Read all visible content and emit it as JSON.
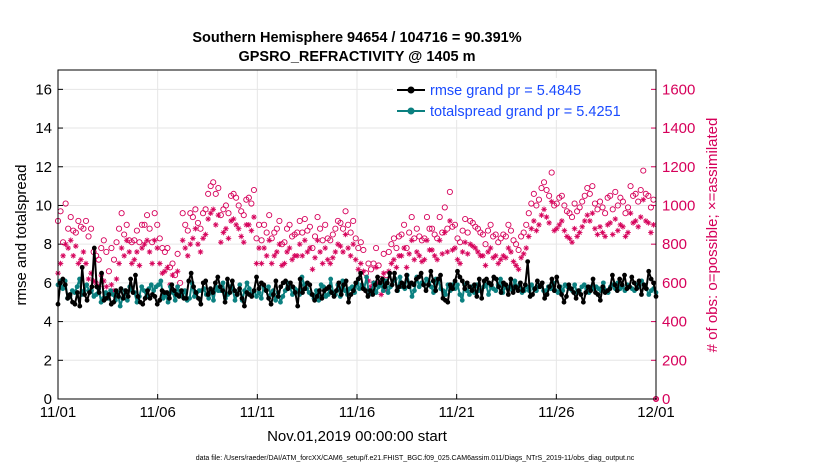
{
  "chart_data": {
    "type": "line",
    "title": "Southern Hemisphere 94654 / 104716 = 90.391%",
    "subtitle": "GPSRO_REFRACTIVITY @ 1405 m",
    "xlabel": "Nov.01,2019 00:00:00 start",
    "ylabel": "rmse and totalspread",
    "y2label": "# of obs: o=possible; ×=assimilated",
    "xticks": [
      "11/01",
      "11/06",
      "11/11",
      "11/16",
      "11/21",
      "11/26",
      "12/01"
    ],
    "yticks": [
      "0",
      "2",
      "4",
      "6",
      "8",
      "10",
      "12",
      "14",
      "16"
    ],
    "y2ticks": [
      "0",
      "200",
      "400",
      "600",
      "800",
      "1000",
      "1200",
      "1400",
      "1600"
    ],
    "xlim": [
      0,
      30
    ],
    "ylim": [
      0,
      17
    ],
    "y2lim": [
      0,
      1700
    ],
    "grid": true,
    "legend_position": "top-right",
    "footnote": "data file: /Users/raeder/DAI/ATM_forcXX/CAM6_setup/f.e21.FHIST_BGC.f09_025.CAM6assim.011/Diags_NTrS_2019-11/obs_diag_output.nc",
    "colors": {
      "rmse": "#000000",
      "spread": "#0b8080",
      "obs": "#d6005a",
      "legend_text": "#1a4bff"
    },
    "series": [
      {
        "name": "rmse grand pr = 5.4845",
        "values": [
          4.9,
          6.0,
          6.2,
          5.9,
          5.2,
          5.4,
          5.0,
          4.9,
          5.5,
          4.8,
          6.8,
          5.4,
          5.1,
          5.5,
          5.8,
          7.8,
          5.8,
          5.5,
          6.5,
          5.1,
          5.2,
          5.4,
          4.9,
          5.0,
          5.6,
          5.3,
          5.7,
          5.2,
          5.6,
          5.3,
          6.2,
          5.5,
          6.4,
          5.3,
          5.0,
          4.9,
          5.2,
          5.6,
          5.2,
          5.4,
          5.3,
          4.9,
          5.1,
          5.6,
          5.5,
          5.5,
          5.2,
          5.9,
          5.6,
          5.4,
          5.3,
          5.6,
          5.2,
          5.2,
          6.1,
          6.5,
          5.8,
          5.5,
          5.2,
          4.9,
          6.0,
          6.1,
          5.4,
          5.7,
          5.5,
          6.0,
          6.3,
          5.8,
          5.6,
          5.0,
          6.2,
          5.5,
          6.1,
          5.6,
          5.4,
          5.7,
          5.2,
          4.8,
          5.5,
          5.4,
          5.3,
          5.6,
          6.3,
          5.7,
          6.0,
          5.9,
          5.6,
          5.2,
          4.9,
          5.4,
          6.1,
          5.3,
          5.8,
          6.0,
          6.1,
          5.7,
          6.0,
          5.8,
          5.5,
          4.8,
          6.2,
          5.5,
          5.7,
          6.0,
          5.9,
          5.4,
          5.1,
          5.3,
          5.6,
          5.2,
          5.6,
          5.7,
          5.8,
          5.5,
          5.3,
          5.6,
          6.0,
          5.4,
          5.9,
          6.1,
          5.0,
          5.4,
          5.6,
          6.0,
          6.2,
          6.5,
          5.7,
          5.6,
          5.3,
          5.6,
          5.4,
          5.9,
          6.3,
          6.0,
          6.2,
          5.8,
          6.0,
          6.5,
          5.9,
          6.5,
          5.6,
          5.8,
          6.0,
          5.8,
          6.4,
          5.8,
          6.0,
          5.9,
          6.2,
          6.3,
          6.5,
          5.9,
          5.6,
          5.9,
          6.6,
          6.1,
          5.6,
          6.2,
          6.4,
          5.2,
          5.1,
          5.0,
          5.9,
          5.7,
          6.1,
          6.6,
          6.3,
          6.1,
          5.7,
          6.0,
          5.8,
          5.6,
          5.9,
          5.3,
          6.2,
          5.2,
          6.1,
          6.2,
          6.0,
          5.9,
          6.3,
          6.2,
          5.8,
          5.5,
          6.0,
          5.9,
          5.4,
          6.2,
          5.5,
          5.8,
          5.6,
          6.0,
          5.6,
          5.9,
          7.1,
          5.3,
          5.4,
          5.7,
          6.1,
          5.8,
          6.0,
          5.2,
          5.4,
          5.8,
          6.2,
          5.6,
          6.3,
          5.8,
          5.4,
          5.0,
          5.3,
          5.9,
          5.7,
          5.5,
          5.2,
          5.6,
          5.4,
          5.0,
          5.5,
          5.8,
          5.6,
          6.2,
          5.5,
          5.4,
          5.1,
          5.8,
          5.5,
          5.6,
          5.7,
          6.4,
          5.9,
          5.6,
          6.2,
          5.9,
          6.4,
          5.7,
          5.8,
          6.3,
          6.0,
          5.7,
          6.1,
          5.4,
          5.9,
          5.7,
          6.6,
          6.2,
          6.0,
          5.3
        ]
      },
      {
        "name": "totalspread grand pr = 5.4251",
        "values": [
          5.9,
          6.1,
          5.7,
          6.1,
          5.2,
          5.3,
          5.6,
          5.5,
          5.8,
          6.2,
          5.4,
          5.6,
          5.9,
          5.6,
          5.6,
          5.3,
          5.4,
          5.7,
          5.0,
          5.2,
          5.5,
          5.2,
          5.6,
          5.4,
          5.1,
          5.5,
          4.8,
          5.2,
          5.6,
          5.1,
          5.8,
          5.6,
          5.5,
          5.0,
          5.3,
          5.8,
          5.6,
          5.3,
          5.7,
          5.9,
          5.6,
          5.8,
          5.9,
          6.1,
          5.2,
          5.4,
          5.0,
          5.8,
          5.5,
          5.1,
          5.8,
          5.4,
          5.3,
          5.6,
          5.1,
          5.2,
          6.0,
          5.3,
          5.5,
          5.6,
          5.6,
          5.7,
          5.4,
          5.2,
          5.6,
          5.1,
          5.8,
          5.6,
          5.6,
          6.0,
          5.2,
          5.4,
          5.8,
          5.7,
          5.1,
          5.4,
          5.9,
          5.1,
          5.6,
          6.0,
          5.7,
          5.4,
          5.6,
          5.3,
          5.5,
          5.2,
          5.8,
          5.6,
          5.8,
          5.4,
          5.6,
          5.1,
          5.5,
          5.0,
          5.3,
          5.6,
          6.0,
          5.8,
          5.4,
          5.7,
          5.6,
          5.4,
          6.3,
          5.9,
          5.7,
          5.5,
          5.4,
          5.2,
          5.6,
          5.1,
          5.9,
          5.8,
          5.3,
          5.4,
          6.2,
          5.5,
          5.4,
          5.9,
          5.3,
          6.1,
          5.6,
          5.4,
          5.7,
          5.8,
          5.5,
          6.0,
          5.7,
          5.9,
          5.7,
          6.3,
          5.4,
          5.6,
          6.0,
          5.5,
          5.8,
          5.9,
          5.6,
          6.1,
          5.5,
          5.8,
          6.1,
          6.2,
          5.6,
          6.3,
          5.8,
          5.7,
          6.4,
          5.9,
          5.3,
          5.6,
          6.3,
          5.8,
          6.0,
          5.9,
          6.2,
          6.0,
          5.8,
          5.5,
          6.2,
          6.1,
          5.7,
          5.6,
          5.4,
          5.9,
          5.6,
          5.9,
          5.7,
          5.9,
          5.4,
          5.1,
          5.9,
          5.6,
          5.4,
          5.8,
          5.5,
          5.9,
          5.6,
          5.6,
          5.8,
          5.9,
          5.4,
          5.8,
          5.7,
          5.6,
          5.9,
          6.2,
          5.5,
          5.8,
          5.7,
          5.8,
          5.6,
          6.1,
          5.7,
          5.9,
          5.5,
          5.6,
          5.8,
          5.6,
          5.9,
          5.7,
          5.6,
          5.8,
          5.9,
          5.6,
          5.6,
          5.8,
          5.7,
          6.0,
          5.6,
          5.5,
          5.8,
          5.6,
          5.9,
          5.8,
          5.7,
          5.6,
          5.9,
          5.5,
          5.6,
          5.8,
          5.9,
          5.7,
          5.5,
          5.8,
          5.7,
          5.8,
          5.7,
          5.6,
          6.0,
          5.6,
          5.5,
          5.8,
          5.9,
          5.7,
          6.0,
          5.7,
          5.8,
          5.6,
          5.9,
          5.8,
          5.7,
          5.6,
          5.9,
          5.8,
          6.1,
          5.9,
          5.7,
          5.4,
          5.6,
          5.7,
          5.5
        ]
      },
      {
        "name": "possible",
        "values": [
          920,
          970,
          810,
          1010,
          880,
          940,
          870,
          860,
          920,
          890,
          880,
          920,
          840,
          880,
          760,
          740,
          720,
          780,
          820,
          760,
          660,
          780,
          720,
          810,
          880,
          960,
          850,
          900,
          820,
          810,
          820,
          870,
          810,
          900,
          900,
          950,
          880,
          810,
          960,
          900,
          830,
          780,
          760,
          780,
          680,
          700,
          640,
          750,
          600,
          960,
          900,
          870,
          960,
          940,
          980,
          910,
          880,
          960,
          980,
          1060,
          1100,
          1120,
          1060,
          1090,
          950,
          980,
          1000,
          960,
          1050,
          1060,
          1040,
          1000,
          970,
          950,
          1030,
          1040,
          1010,
          1080,
          830,
          900,
          820,
          900,
          860,
          950,
          830,
          860,
          880,
          920,
          800,
          810,
          880,
          900,
          840,
          850,
          860,
          920,
          860,
          930,
          870,
          890,
          780,
          840,
          940,
          880,
          820,
          900,
          830,
          820,
          850,
          880,
          920,
          910,
          880,
          970,
          900,
          860,
          920,
          830,
          780,
          810,
          770,
          650,
          700,
          670,
          700,
          780,
          690,
          620,
          750,
          640,
          760,
          800,
          830,
          780,
          840,
          850,
          900,
          780,
          860,
          940,
          830,
          880,
          840,
          820,
          830,
          940,
          880,
          880,
          850,
          830,
          940,
          860,
          990,
          880,
          1070,
          890,
          900,
          830,
          810,
          870,
          930,
          860,
          920,
          910,
          890,
          880,
          860,
          850,
          800,
          870,
          900,
          840,
          850,
          810,
          830,
          850,
          840,
          900,
          870,
          820,
          800,
          770,
          840,
          860,
          900,
          960,
          1010,
          1060,
          1000,
          1030,
          1090,
          1120,
          1080,
          1050,
          1170,
          1000,
          1010,
          1040,
          1050,
          1000,
          970,
          960,
          940,
          1010,
          970,
          990,
          1020,
          1050,
          1090,
          1060,
          1100,
          1010,
          980,
          1020,
          990,
          960,
          1040,
          1050,
          980,
          1070,
          1000,
          1040,
          1020,
          960,
          990,
          1100,
          1050,
          1060,
          1020,
          1080,
          1180,
          1060,
          1050,
          990,
          1030,
          0
        ]
      },
      {
        "name": "assimilated",
        "values": [
          650,
          700,
          740,
          800,
          780,
          820,
          740,
          790,
          700,
          720,
          760,
          700,
          620,
          650,
          610,
          600,
          580,
          640,
          610,
          580,
          540,
          590,
          560,
          620,
          700,
          780,
          740,
          820,
          760,
          700,
          720,
          760,
          690,
          780,
          800,
          820,
          760,
          700,
          820,
          780,
          700,
          650,
          660,
          680,
          590,
          640,
          560,
          660,
          540,
          820,
          780,
          740,
          800,
          830,
          880,
          800,
          760,
          830,
          850,
          930,
          960,
          980,
          900,
          950,
          810,
          860,
          880,
          830,
          920,
          930,
          900,
          880,
          840,
          810,
          900,
          900,
          870,
          940,
          700,
          780,
          700,
          780,
          740,
          820,
          700,
          740,
          760,
          800,
          690,
          700,
          760,
          780,
          720,
          740,
          740,
          800,
          740,
          820,
          760,
          780,
          670,
          730,
          820,
          760,
          700,
          780,
          720,
          700,
          730,
          760,
          800,
          790,
          760,
          850,
          780,
          740,
          800,
          720,
          670,
          700,
          660,
          560,
          610,
          580,
          600,
          680,
          600,
          540,
          650,
          560,
          660,
          700,
          720,
          680,
          740,
          740,
          780,
          680,
          750,
          820,
          720,
          760,
          740,
          710,
          720,
          820,
          770,
          770,
          740,
          720,
          820,
          750,
          860,
          760,
          920,
          770,
          780,
          720,
          700,
          760,
          810,
          750,
          800,
          790,
          780,
          760,
          740,
          740,
          690,
          760,
          780,
          730,
          740,
          700,
          720,
          740,
          730,
          780,
          760,
          710,
          690,
          670,
          730,
          750,
          780,
          840,
          880,
          920,
          870,
          900,
          950,
          980,
          940,
          910,
          1020,
          870,
          880,
          900,
          920,
          870,
          840,
          830,
          810,
          880,
          840,
          860,
          890,
          920,
          950,
          920,
          960,
          880,
          850,
          890,
          860,
          840,
          900,
          910,
          850,
          930,
          870,
          900,
          890,
          840,
          860,
          960,
          910,
          920,
          890,
          940,
          1030,
          920,
          910,
          860,
          900,
          0
        ]
      }
    ]
  }
}
